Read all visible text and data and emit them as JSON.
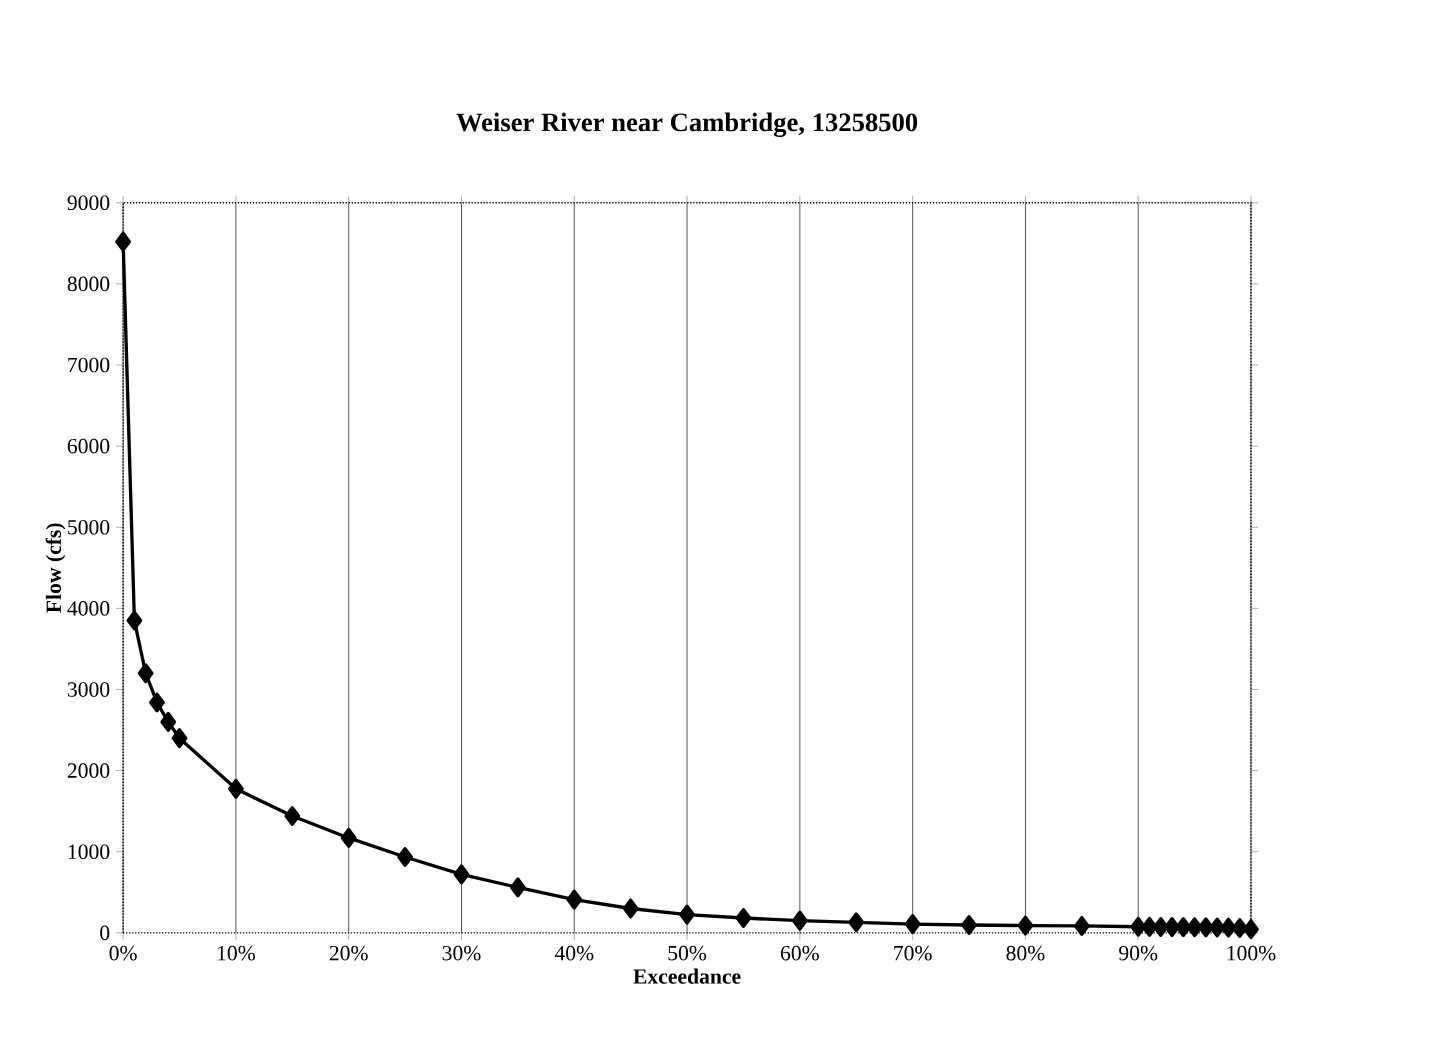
{
  "chart_data": {
    "type": "line",
    "title": "Weiser River near Cambridge, 13258500",
    "xlabel": "Exceedance",
    "ylabel": "Flow (cfs)",
    "x": [
      0,
      1,
      2,
      3,
      4,
      5,
      10,
      15,
      20,
      25,
      30,
      35,
      40,
      45,
      50,
      55,
      60,
      65,
      70,
      75,
      80,
      85,
      90,
      91,
      92,
      93,
      94,
      95,
      96,
      97,
      98,
      99,
      100
    ],
    "series": [
      {
        "color": "#000000",
        "values": [
          8520,
          3850,
          3200,
          2840,
          2600,
          2400,
          1775,
          1440,
          1170,
          935,
          720,
          560,
          410,
          300,
          225,
          183,
          150,
          130,
          108,
          97,
          90,
          85,
          75,
          73,
          72,
          71,
          70,
          69,
          68,
          66,
          64,
          60,
          45
        ]
      }
    ],
    "xlim": [
      0,
      100
    ],
    "ylim": [
      0,
      9000
    ],
    "xticks": [
      {
        "value": 0,
        "label": "0%"
      },
      {
        "value": 10,
        "label": "10%"
      },
      {
        "value": 20,
        "label": "20%"
      },
      {
        "value": 30,
        "label": "30%"
      },
      {
        "value": 40,
        "label": "40%"
      },
      {
        "value": 50,
        "label": "50%"
      },
      {
        "value": 60,
        "label": "60%"
      },
      {
        "value": 70,
        "label": "70%"
      },
      {
        "value": 80,
        "label": "80%"
      },
      {
        "value": 90,
        "label": "90%"
      },
      {
        "value": 100,
        "label": "100%"
      }
    ],
    "yticks": [
      0,
      1000,
      2000,
      3000,
      4000,
      5000,
      6000,
      7000,
      8000,
      9000
    ],
    "grid": "x",
    "marker": "diamond",
    "line_style": "solid"
  }
}
